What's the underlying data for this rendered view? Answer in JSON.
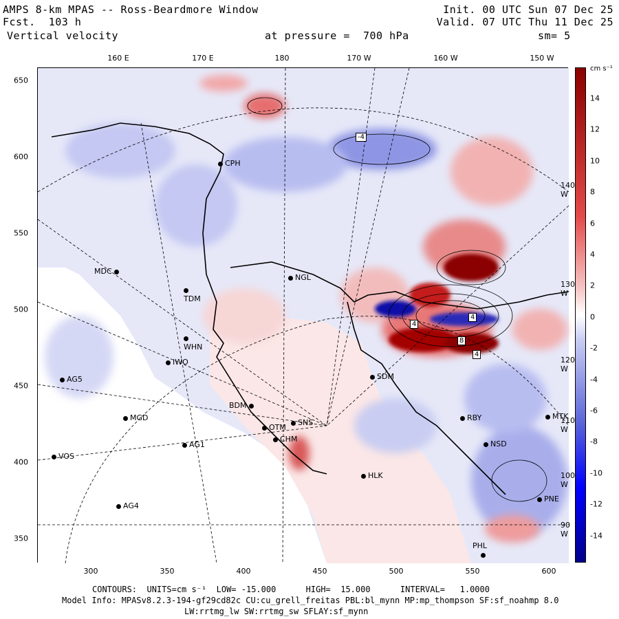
{
  "header": {
    "title": "AMPS 8-km MPAS -- Ross-Beardmore Window",
    "forecast": "Fcst.  103 h",
    "variable": "Vertical velocity",
    "init": "Init. 00 UTC Sun 07 Dec 25",
    "valid": "Valid. 07 UTC Thu 11 Dec 25",
    "pressure": "at pressure =  700 hPa",
    "smoothing": "sm= 5"
  },
  "axes": {
    "top_lon_labels": [
      "160 E",
      "170 E",
      "180",
      "170 W",
      "160 W",
      "150 W"
    ],
    "left_lat_labels": [
      "650",
      "600",
      "550",
      "500",
      "450",
      "400",
      "350"
    ],
    "bottom_labels": [
      "300",
      "350",
      "400",
      "450",
      "500",
      "550",
      "600"
    ],
    "right_lon_labels": [
      "140 W",
      "130 W",
      "120 W",
      "110 W",
      "100 W",
      "90 W"
    ]
  },
  "colorbar": {
    "units": "cm s⁻¹",
    "labels": [
      "14",
      "12",
      "10",
      "8",
      "6",
      "4",
      "2",
      "0",
      "-2",
      "-4",
      "-6",
      "-8",
      "-10",
      "-12",
      "-14"
    ]
  },
  "stations": [
    {
      "name": "CPH"
    },
    {
      "name": "MDC"
    },
    {
      "name": "TDM"
    },
    {
      "name": "NGL"
    },
    {
      "name": "WHN"
    },
    {
      "name": "IWO"
    },
    {
      "name": "AG5"
    },
    {
      "name": "SDM"
    },
    {
      "name": "BDM"
    },
    {
      "name": "MGD"
    },
    {
      "name": "OTM"
    },
    {
      "name": "CHM"
    },
    {
      "name": "SNS"
    },
    {
      "name": "AG1"
    },
    {
      "name": "VOS"
    },
    {
      "name": "HLK"
    },
    {
      "name": "RBY"
    },
    {
      "name": "NSD"
    },
    {
      "name": "MTK"
    },
    {
      "name": "PNE"
    },
    {
      "name": "AG4"
    },
    {
      "name": "PHL"
    }
  ],
  "contour_labels": [
    "-4",
    "4",
    "4",
    "8",
    "4"
  ],
  "footer": {
    "contours": "CONTOURS:  UNITS=cm s⁻¹  LOW= -15.000      HIGH=  15.000      INTERVAL=   1.0000",
    "model_info": "Model Info: MPASv8.2.3-194-gf29cd82c CU:cu_grell_freitas PBL:bl_mynn MP:mp_thompson SF:sf_noahmp 8.0",
    "model_info2": "LW:rrtmg_lw SW:rrtmg_sw SFLAY:sf_mynn"
  },
  "colors": {
    "positive_max": "#8b0000",
    "positive_mid": "#e34a4a",
    "positive_light": "#f7c9c9",
    "negative_light": "#c9cdf2",
    "negative_mid": "#5a64d8",
    "negative_max": "#00008b"
  }
}
